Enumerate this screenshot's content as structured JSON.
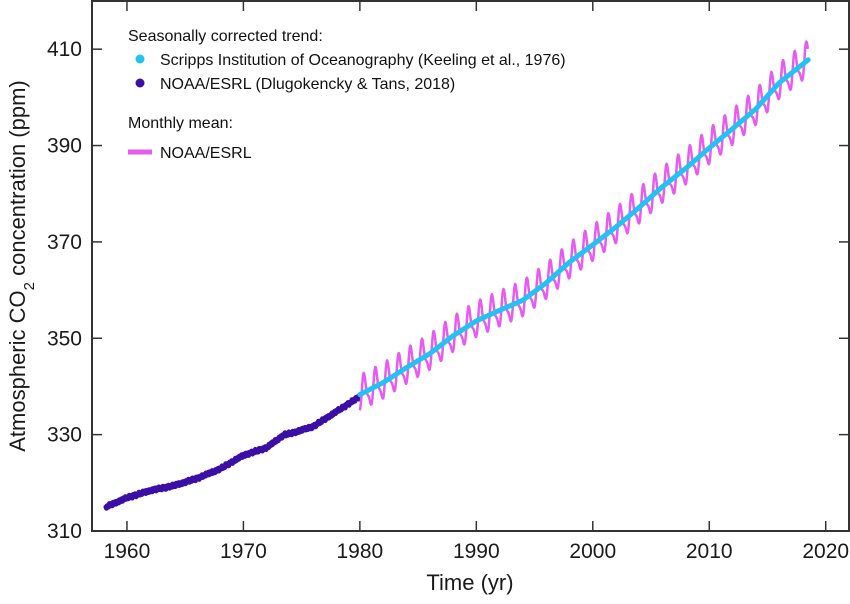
{
  "chart_data": {
    "type": "line",
    "title": "",
    "xlabel": "Time (yr)",
    "ylabel_prefix": "Atmospheric CO",
    "ylabel_sub": "2",
    "ylabel_suffix": " concentration (ppm)",
    "xlim": [
      1957,
      2022
    ],
    "ylim": [
      310,
      420
    ],
    "xticks": [
      1960,
      1970,
      1980,
      1990,
      2000,
      2010,
      2020
    ],
    "xtick_labels": [
      "1960",
      "1970",
      "1980",
      "1990",
      "2000",
      "2010",
      "2020"
    ],
    "yticks": [
      310,
      330,
      350,
      370,
      390,
      410
    ],
    "ytick_labels": [
      "310",
      "330",
      "350",
      "370",
      "390",
      "410"
    ],
    "grid": false,
    "legend": {
      "placement": "top-left",
      "group1_title": "Seasonally corrected trend:",
      "group2_title": "Monthly mean:",
      "entries": [
        {
          "label": "Scripps Institution of Oceanography (Keeling et al., 1976)",
          "marker": "dot",
          "color": "#22c2f2"
        },
        {
          "label": "NOAA/ESRL (Dlugokencky & Tans, 2018)",
          "marker": "dot",
          "color": "#3b0ea6"
        },
        {
          "label": "NOAA/ESRL",
          "marker": "line",
          "color": "#e65cf0"
        }
      ]
    },
    "series": [
      {
        "name": "Scripps Institution of Oceanography (Keeling et al., 1976) — seasonally corrected trend",
        "color": "#22c2f2",
        "x": [
          1958.2,
          1960,
          1962,
          1964,
          1966,
          1968,
          1970,
          1972,
          1973.5,
          1974,
          1976,
          1978,
          1980
        ],
        "y": [
          315.0,
          316.9,
          318.4,
          319.4,
          320.9,
          322.9,
          325.7,
          327.3,
          330.0,
          330.2,
          331.7,
          334.8,
          337.9
        ]
      },
      {
        "name": "NOAA/ESRL (Dlugokencky & Tans, 2018) — seasonally corrected trend",
        "color": "#3b0ea6",
        "x": [
          1958.2,
          1960,
          1962,
          1964,
          1966,
          1968,
          1970,
          1972,
          1973.5,
          1974,
          1976,
          1978,
          1980
        ],
        "y": [
          315.0,
          316.9,
          318.4,
          319.4,
          320.9,
          322.9,
          325.7,
          327.3,
          330.0,
          330.2,
          331.7,
          334.8,
          337.9
        ]
      },
      {
        "name": "NOAA/ESRL seasonally corrected trend (1980–2018)",
        "color": "#22c2f2",
        "x": [
          1980,
          1982,
          1984,
          1986,
          1988,
          1990,
          1992,
          1994,
          1996,
          1998,
          2000,
          2002,
          2004,
          2006,
          2008,
          2010,
          2012,
          2014,
          2016,
          2018.5
        ],
        "y": [
          338.3,
          340.8,
          343.9,
          346.8,
          350.5,
          353.6,
          355.8,
          357.9,
          361.5,
          365.8,
          369.4,
          373.1,
          377.2,
          381.5,
          385.3,
          389.5,
          393.5,
          397.6,
          403.0,
          407.8
        ]
      },
      {
        "name": "NOAA/ESRL monthly mean",
        "color": "#e65cf0",
        "x_range": [
          1980,
          2018.5
        ],
        "seasonal_amplitude_ppm": 3.2,
        "note": "monthly mean oscillates around the seasonally corrected trend with ~6-7 ppm peak-to-peak seasonal cycle; last value ~409.4"
      }
    ]
  }
}
